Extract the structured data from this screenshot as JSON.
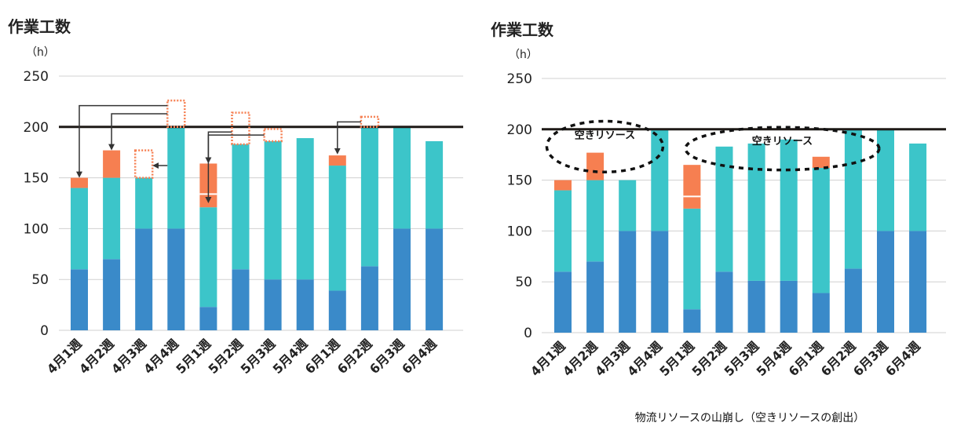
{
  "caption": "物流リソースの山崩し（空きリソースの創出）",
  "colors": {
    "base": "#3a8ac9",
    "middle": "#3cc5c9",
    "extra": "#f67f51",
    "capacity_line": "#1f1a17",
    "grid": "#d0d0d0",
    "moved": "#f67f51",
    "arrow": "#333333"
  },
  "chart_data": [
    {
      "type": "bar",
      "stacked": true,
      "title": "",
      "ylabel": "作業工数",
      "yunit": "（h）",
      "ylim": [
        0,
        250
      ],
      "yticks": [
        0,
        50,
        100,
        150,
        200,
        250
      ],
      "capacity": 200,
      "categories": [
        "4月1週",
        "4月2週",
        "4月3週",
        "4月4週",
        "5月1週",
        "5月2週",
        "5月3週",
        "5月4週",
        "6月1週",
        "6月2週",
        "6月3週",
        "6月4週"
      ],
      "series": [
        {
          "name": "base",
          "values": [
            60,
            70,
            100,
            100,
            23,
            60,
            50,
            50,
            39,
            63,
            100,
            100
          ]
        },
        {
          "name": "middle",
          "values": [
            80,
            80,
            50,
            100,
            98,
            123,
            136,
            139,
            123,
            137,
            100,
            86
          ]
        },
        {
          "name": "extra",
          "values": [
            10,
            27,
            0,
            0,
            43,
            0,
            0,
            0,
            10,
            0,
            0,
            0
          ]
        }
      ],
      "split_markers": [
        {
          "category": "5月1週",
          "value": 134
        }
      ],
      "moved_segments": [
        {
          "category": "4月3週",
          "from": 150,
          "to": 177
        },
        {
          "category": "4月4週",
          "from": 200,
          "to": 226
        },
        {
          "category": "5月2週",
          "from": 183,
          "to": 214
        },
        {
          "category": "5月3週",
          "from": 186,
          "to": 198
        },
        {
          "category": "6月2週",
          "from": 200,
          "to": 210
        }
      ],
      "arrows": [
        {
          "from": "4月4週",
          "from_value": 221,
          "to": "4月1週",
          "to_value": 150
        },
        {
          "from": "4月4週",
          "from_value": 213,
          "to": "4月2週",
          "to_value": 177
        },
        {
          "from": "4月4週",
          "from_value": 162,
          "to": "4月3週",
          "to_value": 162
        },
        {
          "from": "5月2週",
          "from_value": 195,
          "to": "5月1週",
          "to_value": 164
        },
        {
          "from": "5月3週",
          "from_value": 192,
          "to": "5月1週",
          "to_value": 125
        },
        {
          "from": "6月2週",
          "from_value": 205,
          "to": "6月1週",
          "to_value": 173
        }
      ],
      "annotations": []
    },
    {
      "type": "bar",
      "stacked": true,
      "title": "",
      "ylabel": "作業工数",
      "yunit": "（h）",
      "ylim": [
        0,
        250
      ],
      "yticks": [
        0,
        50,
        100,
        150,
        200,
        250
      ],
      "capacity": 200,
      "categories": [
        "4月1週",
        "4月2週",
        "4月3週",
        "4月4週",
        "5月1週",
        "5月2週",
        "5月3週",
        "5月4週",
        "6月1週",
        "6月2週",
        "6月3週",
        "6月4週"
      ],
      "series": [
        {
          "name": "base",
          "values": [
            60,
            70,
            100,
            100,
            23,
            60,
            51,
            51,
            39,
            63,
            100,
            100
          ]
        },
        {
          "name": "middle",
          "values": [
            80,
            80,
            50,
            100,
            99,
            123,
            135,
            139,
            123,
            137,
            100,
            86
          ]
        },
        {
          "name": "extra",
          "values": [
            10,
            27,
            0,
            0,
            43,
            0,
            0,
            0,
            11,
            0,
            0,
            0
          ]
        }
      ],
      "split_markers": [
        {
          "category": "5月1週",
          "value": 134
        }
      ],
      "moved_segments": [],
      "arrows": [],
      "annotations": [
        {
          "text": "空きリソース",
          "center_category": 1.3,
          "center_value": 183,
          "rx_categories": 1.8,
          "ry_values": 25
        },
        {
          "text": "空きリソース",
          "center_category": 6.8,
          "center_value": 181,
          "rx_categories": 3.0,
          "ry_values": 21
        }
      ]
    }
  ]
}
